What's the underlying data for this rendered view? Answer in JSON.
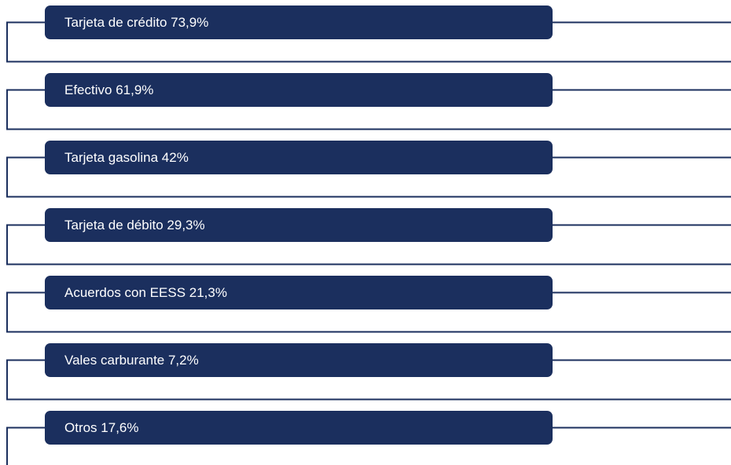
{
  "items": [
    {
      "label": "Tarjeta de crédito 73,9%"
    },
    {
      "label": "Efectivo 61,9%"
    },
    {
      "label": "Tarjeta gasolina 42%"
    },
    {
      "label": "Tarjeta de débito 29,3%"
    },
    {
      "label": "Acuerdos con EESS 21,3%"
    },
    {
      "label": "Vales carburante 7,2%"
    },
    {
      "label": "Otros 17,6%"
    }
  ]
}
